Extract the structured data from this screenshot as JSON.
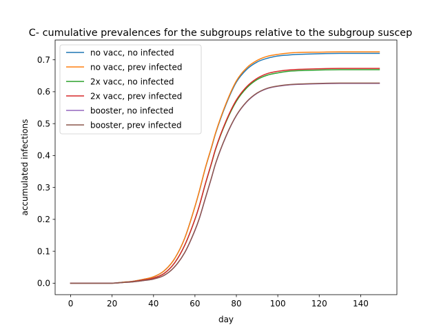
{
  "chart_data": {
    "type": "line",
    "title": "C- cumulative prevalences  for the subgroups relative to the subgroup suscep",
    "xlabel": "day",
    "ylabel": "accumulated infections",
    "xlim": [
      -7.5,
      157.5
    ],
    "ylim": [
      -0.036,
      0.762
    ],
    "xticks": [
      0,
      20,
      40,
      60,
      80,
      100,
      120,
      140
    ],
    "yticks": [
      0.0,
      0.1,
      0.2,
      0.3,
      0.4,
      0.5,
      0.6,
      0.7
    ],
    "xtick_labels": [
      "0",
      "20",
      "40",
      "60",
      "80",
      "100",
      "120",
      "140"
    ],
    "ytick_labels": [
      "0.0",
      "0.1",
      "0.2",
      "0.3",
      "0.4",
      "0.5",
      "0.6",
      "0.7"
    ],
    "grid": false,
    "legend_position": "upper-left",
    "x": [
      0,
      10,
      20,
      25,
      30,
      35,
      40,
      45,
      50,
      55,
      60,
      62,
      65,
      68,
      70,
      75,
      80,
      85,
      90,
      95,
      100,
      105,
      110,
      120,
      130,
      140,
      149
    ],
    "series": [
      {
        "name": "no vacc, no infected",
        "color": "#1f77b4",
        "values": [
          0.0,
          0.0,
          0.0,
          0.003,
          0.006,
          0.012,
          0.02,
          0.038,
          0.075,
          0.14,
          0.24,
          0.285,
          0.36,
          0.425,
          0.47,
          0.56,
          0.63,
          0.67,
          0.693,
          0.705,
          0.712,
          0.715,
          0.717,
          0.719,
          0.72,
          0.72,
          0.72
        ]
      },
      {
        "name": "no vacc, prev infected",
        "color": "#ff7f0e",
        "values": [
          0.0,
          0.0,
          0.0,
          0.003,
          0.006,
          0.012,
          0.02,
          0.038,
          0.075,
          0.14,
          0.24,
          0.286,
          0.361,
          0.427,
          0.472,
          0.563,
          0.634,
          0.675,
          0.698,
          0.711,
          0.717,
          0.721,
          0.723,
          0.724,
          0.725,
          0.725,
          0.725
        ]
      },
      {
        "name": "2x vacc, no infected",
        "color": "#2ca02c",
        "values": [
          0.0,
          0.0,
          0.0,
          0.002,
          0.005,
          0.01,
          0.016,
          0.03,
          0.062,
          0.118,
          0.2,
          0.24,
          0.31,
          0.375,
          0.42,
          0.505,
          0.57,
          0.612,
          0.638,
          0.652,
          0.659,
          0.664,
          0.666,
          0.668,
          0.669,
          0.669,
          0.669
        ]
      },
      {
        "name": "2x vacc, prev infected",
        "color": "#d62728",
        "values": [
          0.0,
          0.0,
          0.0,
          0.002,
          0.005,
          0.01,
          0.016,
          0.03,
          0.062,
          0.118,
          0.2,
          0.24,
          0.311,
          0.377,
          0.422,
          0.508,
          0.574,
          0.616,
          0.642,
          0.657,
          0.664,
          0.668,
          0.67,
          0.672,
          0.673,
          0.673,
          0.673
        ]
      },
      {
        "name": "booster, no infected",
        "color": "#9467bd",
        "values": [
          0.0,
          0.0,
          0.0,
          0.002,
          0.004,
          0.008,
          0.013,
          0.024,
          0.05,
          0.095,
          0.165,
          0.2,
          0.265,
          0.33,
          0.375,
          0.46,
          0.525,
          0.568,
          0.595,
          0.61,
          0.617,
          0.621,
          0.623,
          0.625,
          0.626,
          0.626,
          0.626
        ]
      },
      {
        "name": "booster, prev infected",
        "color": "#8c564b",
        "values": [
          0.0,
          0.0,
          0.0,
          0.002,
          0.004,
          0.008,
          0.013,
          0.024,
          0.05,
          0.095,
          0.166,
          0.201,
          0.266,
          0.331,
          0.376,
          0.461,
          0.526,
          0.569,
          0.596,
          0.611,
          0.618,
          0.622,
          0.624,
          0.626,
          0.627,
          0.627,
          0.627
        ]
      }
    ]
  }
}
